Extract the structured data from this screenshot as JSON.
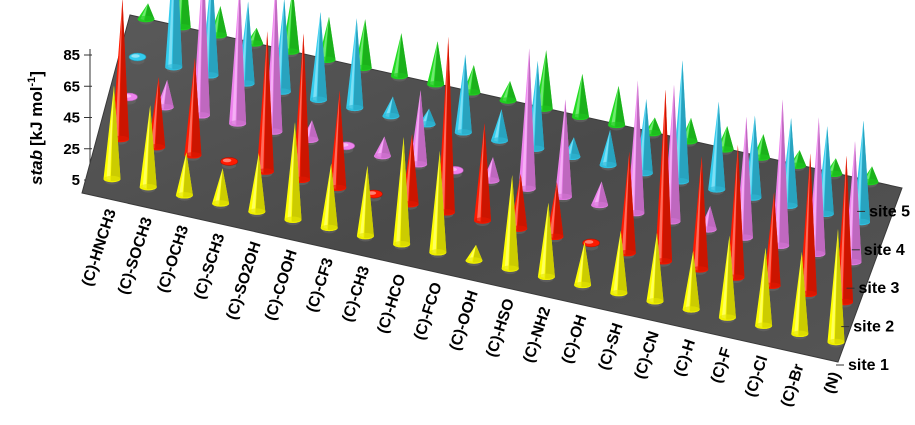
{
  "chart_data": {
    "type": "3d-cone",
    "ylabel_italic": "stab",
    "ylabel_units": "[kJ mol",
    "ylabel_sup": "-1",
    "ylabel_close": "]",
    "yticks": [
      "85",
      "65",
      "45",
      "25",
      "5"
    ],
    "ylim": [
      5,
      85
    ],
    "categories": [
      "(C)-HNCH3",
      "(C)-SOCH3",
      "(C)-OCH3",
      "(C)-SCH3",
      "(C)-SO2OH",
      "(C)-COOH",
      "(C)-CF3",
      "(C)-CH3",
      "(C)-HCO",
      "(C)-FCO",
      "(C)-OOH",
      "(C)-HSO",
      "(C)-NH2",
      "(C)-OH",
      "(C)-SH",
      "(C)-CN",
      "(C)-H",
      "(C)-F",
      "(C)-Cl",
      "(C)-Br",
      "(N)"
    ],
    "series": [
      {
        "name": "site 1",
        "color": "#ffff00",
        "values": [
          48,
          42,
          22,
          18,
          30,
          50,
          33,
          36,
          55,
          52,
          8,
          48,
          38,
          22,
          32,
          35,
          30,
          42,
          40,
          42,
          58
        ]
      },
      {
        "name": "site 2",
        "color": "#ff1a00",
        "values": [
          72,
          36,
          50,
          4,
          72,
          75,
          50,
          6,
          36,
          90,
          50,
          28,
          28,
          6,
          52,
          88,
          58,
          68,
          48,
          72,
          75
        ]
      },
      {
        "name": "site 3",
        "color": "#ee82ee",
        "values": [
          6,
          14,
          82,
          72,
          78,
          10,
          6,
          10,
          38,
          5,
          12,
          72,
          50,
          12,
          68,
          70,
          12,
          62,
          75,
          70,
          62
        ]
      },
      {
        "name": "site 4",
        "color": "#33ccee",
        "values": [
          6,
          75,
          55,
          42,
          48,
          45,
          46,
          10,
          8,
          40,
          16,
          45,
          10,
          18,
          38,
          62,
          45,
          42,
          45,
          45,
          52
        ]
      },
      {
        "name": "site 5",
        "color": "#22dd22",
        "values": [
          8,
          35,
          15,
          8,
          32,
          22,
          25,
          22,
          22,
          14,
          10,
          30,
          22,
          20,
          8,
          12,
          12,
          12,
          8,
          8,
          8
        ]
      }
    ]
  }
}
